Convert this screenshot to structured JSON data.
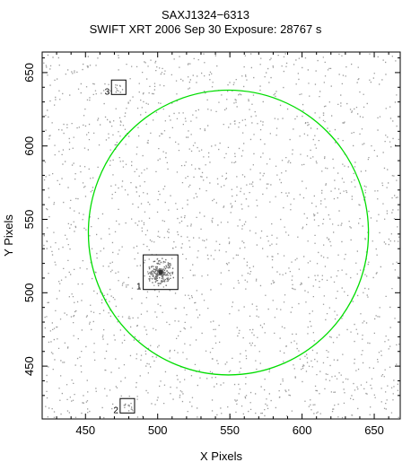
{
  "header": {
    "title": "SAXJ1324−6313",
    "subtitle": "SWIFT XRT   2006 Sep 30    Exposure: 28767 s"
  },
  "chart_data": {
    "type": "scatter",
    "title": "SAXJ1324−6313",
    "subtitle": "SWIFT XRT   2006 Sep 30    Exposure: 28767 s",
    "xlabel": "X Pixels",
    "ylabel": "Y Pixels",
    "xlim": [
      420,
      668
    ],
    "ylim": [
      414,
      664
    ],
    "xticks": [
      450,
      500,
      550,
      600,
      650
    ],
    "yticks": [
      450,
      500,
      550,
      600,
      650
    ],
    "grid": false,
    "background_events": {
      "color": "#9a9a9a",
      "description": "uniform diffuse background of X-ray events"
    },
    "circle": {
      "color": "#00dd00",
      "center": [
        549,
        541
      ],
      "radius": 97
    },
    "sources": [
      {
        "label": "1",
        "x": 502,
        "y": 514,
        "box_half_size": 12,
        "bright": true
      },
      {
        "label": "2",
        "x": 479,
        "y": 423,
        "box_half_size": 5,
        "bright": false
      },
      {
        "label": "3",
        "x": 473,
        "y": 640,
        "box_half_size": 5,
        "bright": false
      }
    ],
    "box_color": "#000000"
  }
}
